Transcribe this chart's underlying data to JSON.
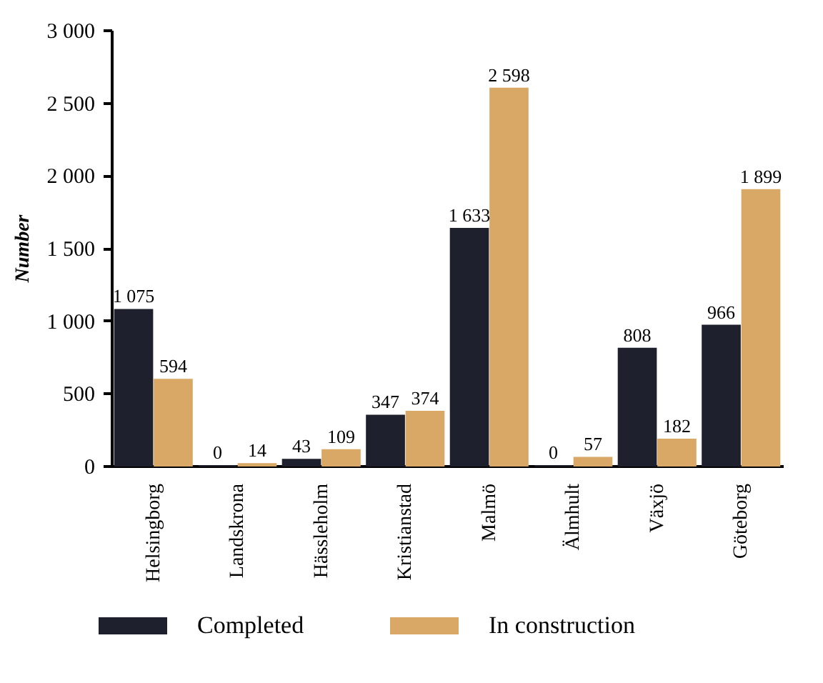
{
  "chart_data": {
    "type": "bar",
    "ylabel": "Number",
    "categories": [
      "Helsingborg",
      "Landskrona",
      "Hässleholm",
      "Kristianstad",
      "Malmö",
      "Älmhult",
      "Växjö",
      "Göteborg"
    ],
    "series": [
      {
        "name": "Completed",
        "color": "#1e202d",
        "values": [
          1075,
          0,
          43,
          347,
          1633,
          0,
          808,
          966
        ],
        "value_labels": [
          "1 075",
          "0",
          "43",
          "347",
          "1 633",
          "0",
          "808",
          "966"
        ]
      },
      {
        "name": "In construction",
        "color": "#d9a866",
        "values": [
          594,
          14,
          109,
          374,
          2598,
          57,
          182,
          1899
        ],
        "value_labels": [
          "594",
          "14",
          "109",
          "374",
          "2 598",
          "57",
          "182",
          "1 899"
        ]
      }
    ],
    "ylim": [
      0,
      3000
    ],
    "yticks": [
      {
        "value": 0,
        "label": "0"
      },
      {
        "value": 500,
        "label": "500"
      },
      {
        "value": 1000,
        "label": "1 000"
      },
      {
        "value": 1500,
        "label": "1 500"
      },
      {
        "value": 2000,
        "label": "2 000"
      },
      {
        "value": 2500,
        "label": "2 500"
      },
      {
        "value": 3000,
        "label": "3 000"
      }
    ],
    "grid": false,
    "legend": "bottom"
  }
}
